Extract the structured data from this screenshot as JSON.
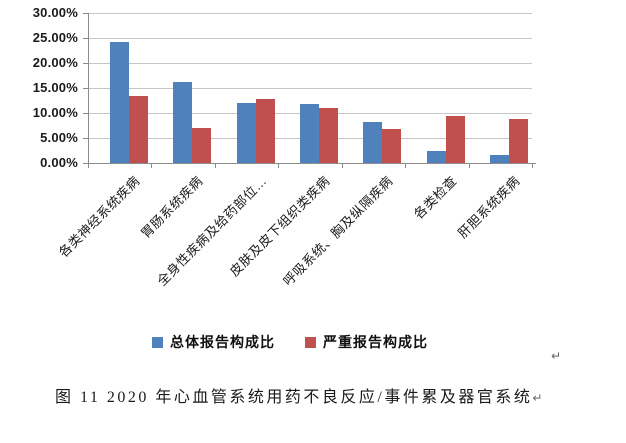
{
  "chart_data": {
    "type": "bar",
    "categories": [
      "各类神经系统疾病",
      "胃肠系统疾病",
      "全身性疾病及给药部位…",
      "皮肤及皮下组织类疾病",
      "呼吸系统、胸及纵隔疾病",
      "各类检查",
      "肝胆系统疾病"
    ],
    "series": [
      {
        "name": "总体报告构成比",
        "color": "#4f81bd",
        "values": [
          24.3,
          16.2,
          12.1,
          11.8,
          8.2,
          2.4,
          1.6
        ]
      },
      {
        "name": "严重报告构成比",
        "color": "#c0504d",
        "values": [
          13.4,
          7.0,
          12.9,
          11.1,
          6.9,
          9.5,
          8.9
        ]
      }
    ],
    "title": "",
    "xlabel": "",
    "ylabel": "",
    "ylim": [
      0,
      30
    ],
    "ytick_step": 5,
    "ytick_labels_top_to_bottom": [
      "30.00%",
      "25.00%",
      "20.00%",
      "15.00%",
      "10.00%",
      "5.00%",
      "0.00%"
    ],
    "grid": true,
    "legend_position": "bottom"
  },
  "colors": {
    "series_blue": "#4f81bd",
    "series_red": "#c0504d",
    "gridline": "#c6c6c6",
    "axis": "#8c8c8c",
    "text": "#1a1a1a",
    "background": "#ffffff"
  },
  "caption": {
    "text": "图 11  2020 年心血管系统用药不良反应/事件累及器官系统",
    "return_mark": "↵"
  },
  "floating_return_mark": "↵"
}
